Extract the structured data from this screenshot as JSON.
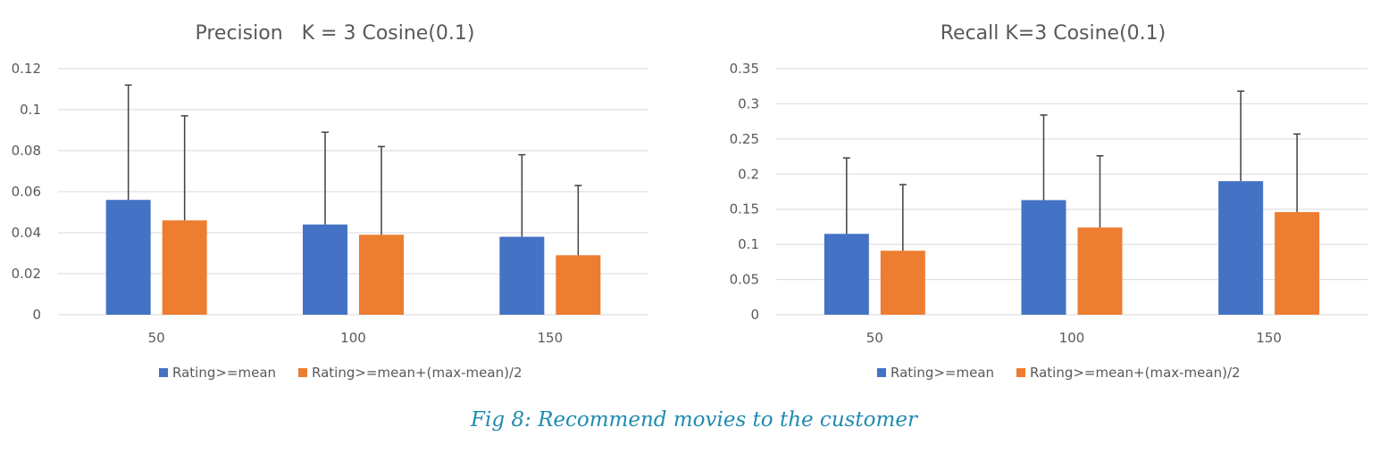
{
  "caption": "Fig 8: Recommend movies to the customer",
  "colors": {
    "series_1": "#4472c4",
    "series_2": "#ed7d31",
    "grid": "#d9d9d9",
    "text": "#595959",
    "caption": "#1e8bb0"
  },
  "chart_data": [
    {
      "type": "bar",
      "title": "Precision   K = 3 Cosine(0.1)",
      "xlabel": "",
      "ylabel": "",
      "categories": [
        "50",
        "100",
        "150"
      ],
      "ylim": [
        0,
        0.12
      ],
      "yticks": [
        "0",
        "0.02",
        "0.04",
        "0.06",
        "0.08",
        "0.1",
        "0.12"
      ],
      "grid": true,
      "legend_position": "bottom",
      "series": [
        {
          "name": "Rating>=mean",
          "values": [
            0.056,
            0.044,
            0.038
          ],
          "error_upper": [
            0.112,
            0.089,
            0.078
          ]
        },
        {
          "name": "Rating>=mean+(max-mean)/2",
          "values": [
            0.046,
            0.039,
            0.029
          ],
          "error_upper": [
            0.097,
            0.082,
            0.063
          ]
        }
      ]
    },
    {
      "type": "bar",
      "title": "Recall K=3 Cosine(0.1)",
      "xlabel": "",
      "ylabel": "",
      "categories": [
        "50",
        "100",
        "150"
      ],
      "ylim": [
        0,
        0.35
      ],
      "yticks": [
        "0",
        "0.05",
        "0.1",
        "0.15",
        "0.2",
        "0.25",
        "0.3",
        "0.35"
      ],
      "grid": true,
      "legend_position": "bottom",
      "series": [
        {
          "name": "Rating>=mean",
          "values": [
            0.115,
            0.163,
            0.19
          ],
          "error_upper": [
            0.223,
            0.284,
            0.318
          ]
        },
        {
          "name": "Rating>=mean+(max-mean)/2",
          "values": [
            0.091,
            0.124,
            0.146
          ],
          "error_upper": [
            0.185,
            0.226,
            0.257
          ]
        }
      ]
    }
  ]
}
